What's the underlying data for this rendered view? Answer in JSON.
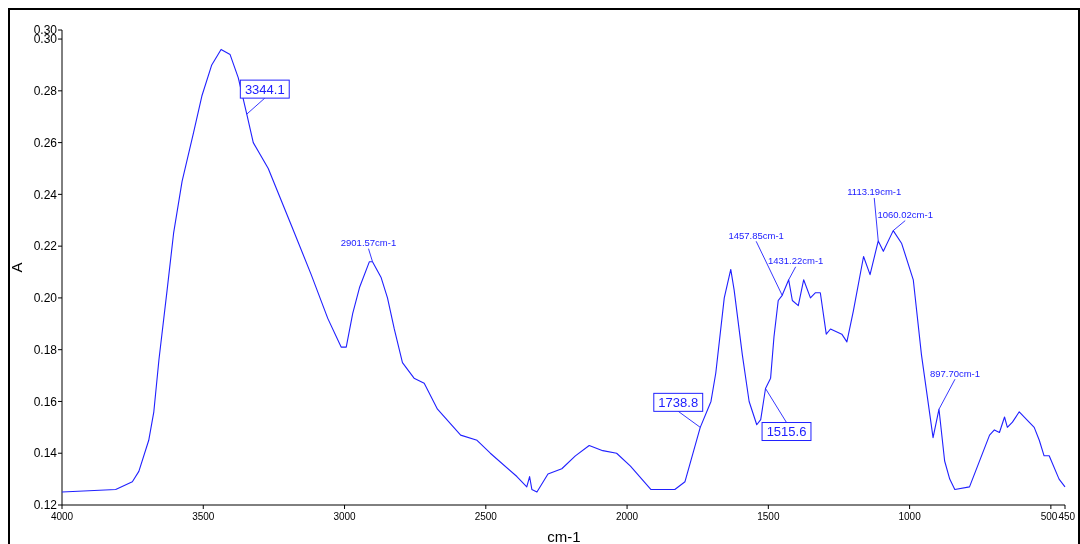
{
  "chart_data": {
    "type": "line",
    "xlabel": "cm-1",
    "ylabel": "A",
    "xlim": [
      4000,
      450
    ],
    "ylim": [
      0.12,
      0.3035
    ],
    "xticks": [
      4000,
      3500,
      3000,
      2500,
      2000,
      1500,
      1000,
      500,
      450
    ],
    "yticks": [
      0.12,
      0.14,
      0.16,
      0.18,
      {
        "value": 0.2,
        "label": "0.20"
      },
      0.22,
      0.24,
      0.26,
      0.28,
      {
        "value": 0.3,
        "label": "0.30"
      },
      {
        "value": 0.3035,
        "label": "0.30"
      }
    ],
    "grid": false,
    "marker": "none",
    "line_style": "solid",
    "series": [
      {
        "color": "#2020ff",
        "x": [
          4000,
          3810,
          3751,
          3728,
          3693,
          3675,
          3657,
          3628,
          3605,
          3575,
          3534,
          3505,
          3470,
          3437,
          3405,
          3376,
          3346,
          3323,
          3270,
          3188,
          3118,
          3059,
          3012,
          2994,
          2971,
          2947,
          2912,
          2901,
          2871,
          2848,
          2824,
          2795,
          2754,
          2718,
          2671,
          2589,
          2531,
          2484,
          2390,
          2355,
          2345,
          2337,
          2319,
          2280,
          2231,
          2183,
          2134,
          2086,
          2037,
          1988,
          1916,
          1831,
          1795,
          1741,
          1703,
          1686,
          1656,
          1633,
          1621,
          1592,
          1568,
          1541,
          1527,
          1510,
          1492,
          1480,
          1465,
          1451,
          1428,
          1415,
          1394,
          1375,
          1351,
          1333,
          1316,
          1295,
          1280,
          1240,
          1222,
          1199,
          1163,
          1140,
          1111,
          1093,
          1058,
          1028,
          987,
          958,
          917,
          896,
          876,
          858,
          840,
          788,
          717,
          700,
          682,
          664,
          654,
          636,
          612,
          577,
          559,
          541,
          524,
          506,
          471,
          450
        ],
        "values": [
          0.125,
          0.126,
          0.129,
          0.133,
          0.145,
          0.156,
          0.176,
          0.203,
          0.225,
          0.245,
          0.264,
          0.278,
          0.29,
          0.296,
          0.294,
          0.285,
          0.271,
          0.26,
          0.25,
          0.228,
          0.209,
          0.192,
          0.181,
          0.181,
          0.194,
          0.204,
          0.214,
          0.214,
          0.208,
          0.2,
          0.188,
          0.175,
          0.169,
          0.167,
          0.157,
          0.147,
          0.145,
          0.14,
          0.131,
          0.127,
          0.131,
          0.126,
          0.125,
          0.132,
          0.134,
          0.139,
          0.143,
          0.141,
          0.14,
          0.135,
          0.126,
          0.126,
          0.129,
          0.15,
          0.16,
          0.171,
          0.2,
          0.211,
          0.203,
          0.178,
          0.16,
          0.151,
          0.153,
          0.165,
          0.169,
          0.185,
          0.199,
          0.201,
          0.207,
          0.199,
          0.197,
          0.207,
          0.2,
          0.202,
          0.202,
          0.186,
          0.188,
          0.186,
          0.183,
          0.195,
          0.216,
          0.209,
          0.222,
          0.218,
          0.226,
          0.221,
          0.207,
          0.178,
          0.146,
          0.157,
          0.137,
          0.13,
          0.126,
          0.127,
          0.147,
          0.149,
          0.148,
          0.154,
          0.15,
          0.152,
          0.156,
          0.152,
          0.15,
          0.145,
          0.139,
          0.139,
          0.13,
          0.127
        ]
      }
    ],
    "annotations": [
      {
        "text": "3344.1",
        "x": 3346,
        "y": 0.271
      },
      {
        "text": "2901.57cm-1",
        "x": 2901,
        "y": 0.214
      },
      {
        "text": "1738.8",
        "x": 1741,
        "y": 0.15
      },
      {
        "text": "1515.6",
        "x": 1510,
        "y": 0.165
      },
      {
        "text": "1457.85cm-1",
        "x": 1451,
        "y": 0.201
      },
      {
        "text": "1431.22cm-1",
        "x": 1428,
        "y": 0.207
      },
      {
        "text": "1113.19cm-1",
        "x": 1111,
        "y": 0.222
      },
      {
        "text": "1060.02cm-1",
        "x": 1058,
        "y": 0.226
      },
      {
        "text": "897.70cm-1",
        "x": 896,
        "y": 0.157
      }
    ]
  }
}
